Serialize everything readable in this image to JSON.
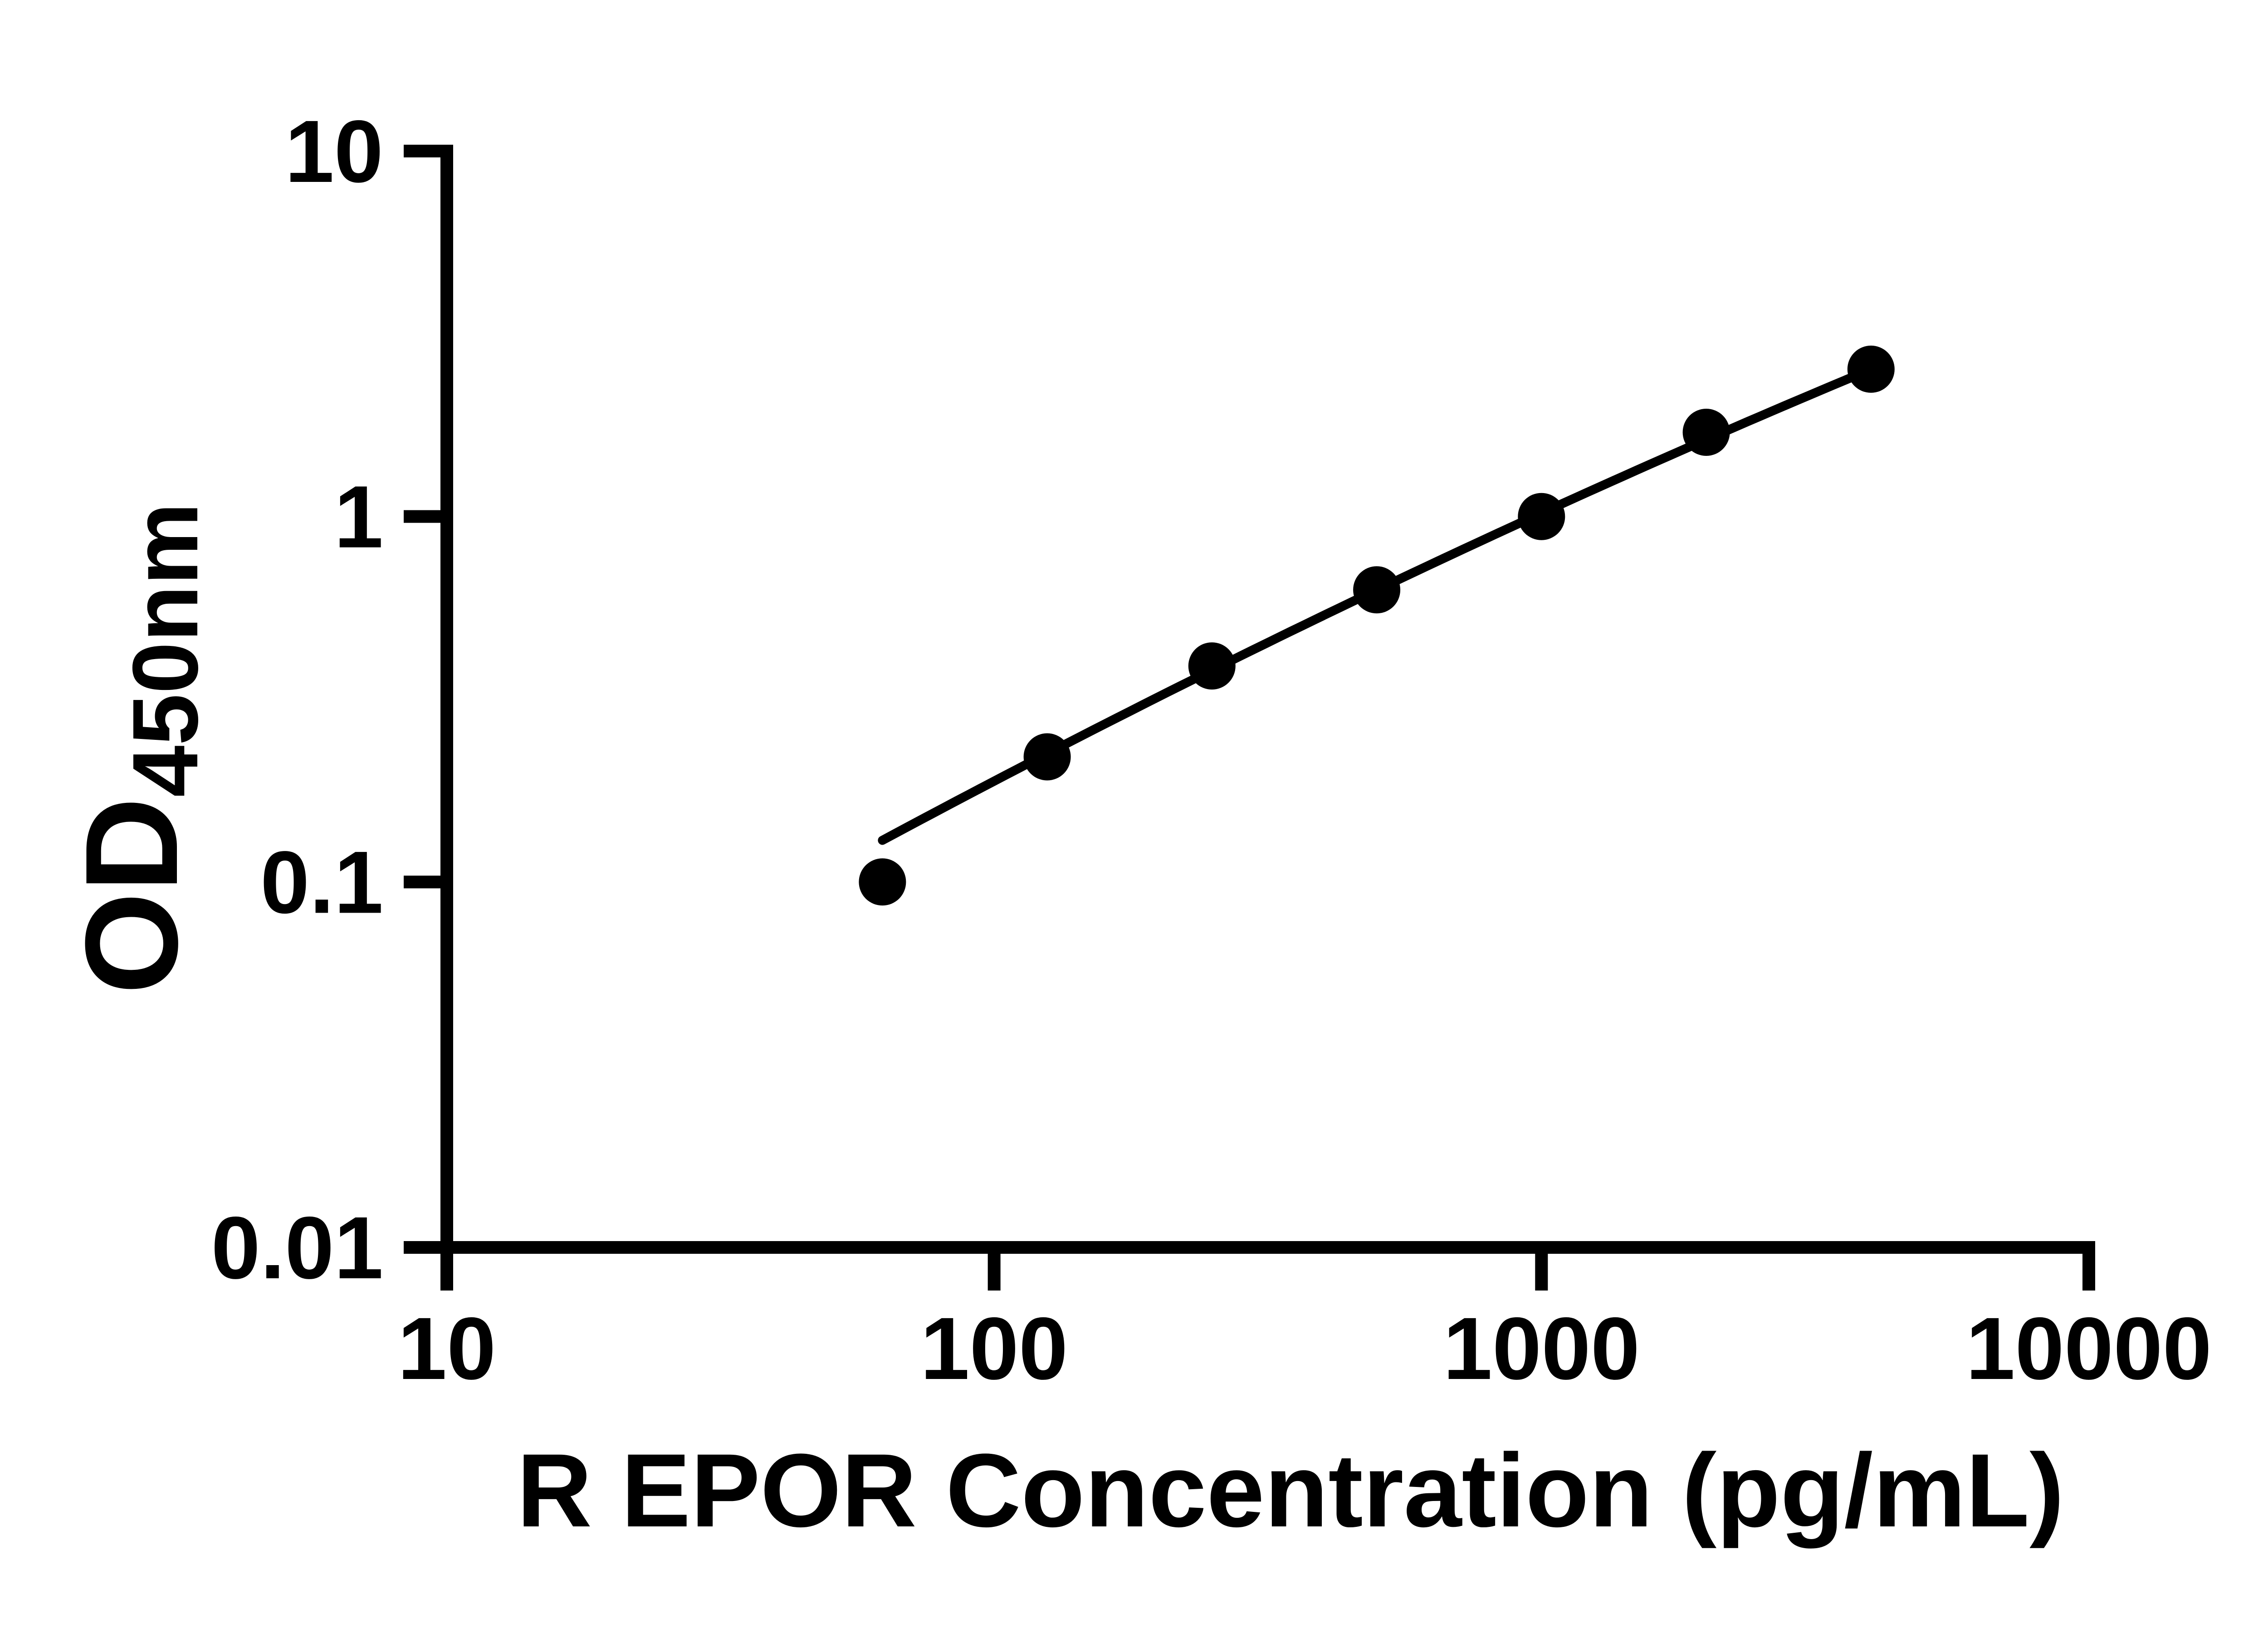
{
  "chart_data": {
    "type": "scatter",
    "title": "",
    "xlabel": "R EPOR Concentration (pg/mL)",
    "ylabel": "OD450nm",
    "ylabel_main": "OD",
    "ylabel_sub": "450nm",
    "x_scale": "log10",
    "y_scale": "log10",
    "xlim": [
      10,
      10000
    ],
    "ylim": [
      0.01,
      10
    ],
    "x_ticks": [
      "10",
      "100",
      "1000",
      "10000"
    ],
    "y_ticks": [
      "10",
      "1",
      "0.1",
      "0.01"
    ],
    "grid": false,
    "legend": false,
    "marker": "filled-circle",
    "ink_color": "#000000",
    "background_color": "#ffffff",
    "series": [
      {
        "points": [
          {
            "x": 62.5,
            "y": 0.1
          },
          {
            "x": 125,
            "y": 0.22
          },
          {
            "x": 250,
            "y": 0.39
          },
          {
            "x": 500,
            "y": 0.63
          },
          {
            "x": 1000,
            "y": 1.0
          },
          {
            "x": 2000,
            "y": 1.7
          },
          {
            "x": 4000,
            "y": 2.53
          }
        ]
      }
    ],
    "trendline": {
      "shape": "smooth slightly-concave fit curve drawn through points, starting just above first point",
      "log10_x_start": 1.7959,
      "log10_x_end": 3.6021,
      "log10_y_at_start": -0.886,
      "slope": 0.8035,
      "curvature": -0.0498
    }
  }
}
